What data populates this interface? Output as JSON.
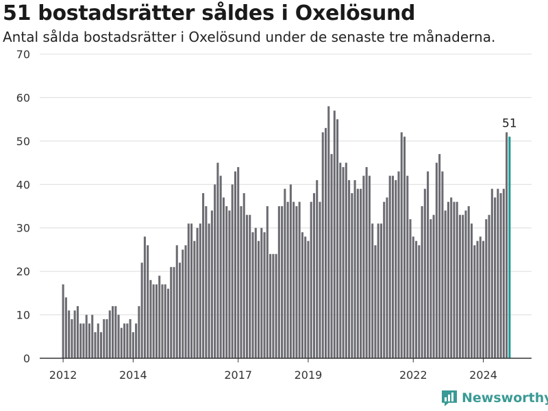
{
  "header": {
    "title": "51 bostadsrätter såldes i Oxelösund",
    "subtitle": "Antal sålda bostadsrätter i Oxelösund under de senaste tre månaderna."
  },
  "brand": {
    "name": "Newsworthy",
    "icon": "newsworthy-logo-icon",
    "color": "#3a9a95"
  },
  "colors": {
    "bar": "#6b6b72",
    "highlight": "#1a9a93",
    "grid": "#dcdcdc",
    "axis": "#333333"
  },
  "chart_data": {
    "type": "bar",
    "title": "51 bostadsrätter såldes i Oxelösund",
    "subtitle": "Antal sålda bostadsrätter i Oxelösund under de senaste tre månaderna.",
    "xlabel": "",
    "ylabel": "",
    "ylim": [
      0,
      70
    ],
    "yticks": [
      0,
      10,
      20,
      30,
      40,
      50,
      60,
      70
    ],
    "xticks": [
      "2012",
      "2014",
      "2017",
      "2019",
      "2022",
      "2024"
    ],
    "grid": true,
    "highlight_label": "51",
    "series": [
      {
        "values": [
          17,
          14,
          11,
          9,
          11,
          12,
          8,
          8,
          10,
          8,
          10,
          6,
          8,
          6,
          9,
          9,
          11,
          12,
          12,
          10,
          7,
          8,
          8,
          9,
          6,
          8,
          12,
          22,
          28,
          26,
          18,
          17,
          17,
          19,
          17,
          17,
          16,
          21,
          21,
          26,
          22,
          25,
          26,
          31,
          31,
          27,
          30,
          31,
          38,
          35,
          31,
          34,
          40,
          45,
          42,
          37,
          35,
          34,
          40,
          43,
          44,
          35,
          38,
          33,
          33,
          29,
          30,
          27,
          30,
          29,
          35,
          24,
          24,
          24,
          35,
          35,
          39,
          36,
          40,
          36,
          35,
          36,
          29,
          28,
          27,
          36,
          38,
          41,
          36,
          52,
          53,
          58,
          47,
          57,
          55,
          45,
          44,
          45,
          41,
          38,
          41,
          39,
          39,
          42,
          44,
          42,
          31,
          26,
          31,
          31,
          36,
          37,
          42,
          42,
          41,
          43,
          52,
          51,
          42,
          32,
          28,
          27,
          26,
          35,
          39,
          43,
          32,
          33,
          45,
          47,
          43,
          34,
          36,
          37,
          36,
          36,
          33,
          33,
          34,
          35,
          31,
          26,
          27,
          28,
          27,
          32,
          33,
          39,
          37,
          39,
          38,
          39,
          52,
          51
        ]
      }
    ]
  }
}
